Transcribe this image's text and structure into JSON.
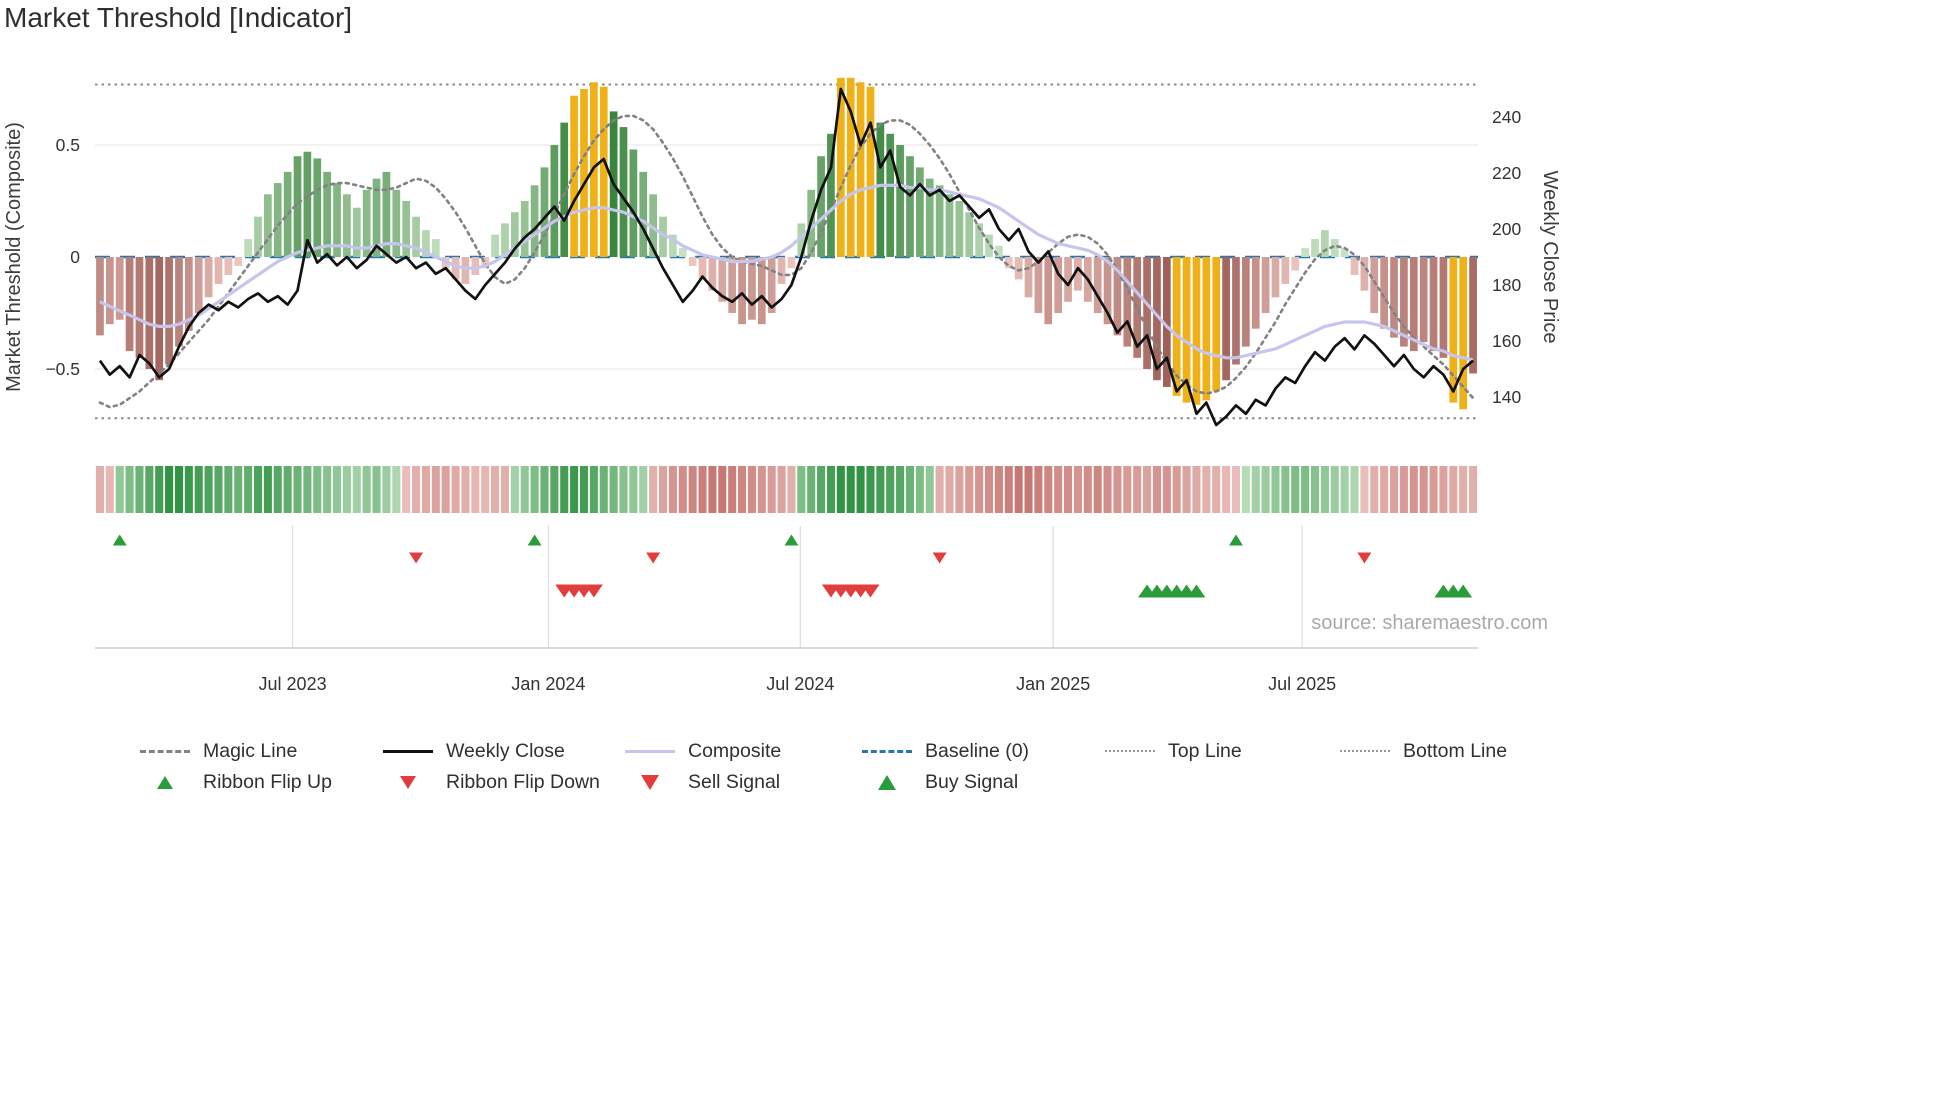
{
  "page": {
    "title": "Market Threshold [Indicator]",
    "source_credit": "source: sharemaestro.com"
  },
  "colors": {
    "bar_green_dark": "#2e7d32",
    "bar_green_light": "#cfe8cb",
    "bar_red_dark": "#8e4a42",
    "bar_red_light": "#f3ccc7",
    "bar_highlight": "#efb118",
    "weekly_close_line": "#111111",
    "composite_line": "#c6c6ec",
    "magic_line": "#828282",
    "baseline": "#2878b0",
    "guide_line": "#8a8a8a",
    "ribbon_green_dark": "#1d8a33",
    "ribbon_green_light": "#ddefd8",
    "ribbon_red_dark": "#b44e48",
    "ribbon_red_light": "#f6dad6",
    "signal_green": "#2a9d3a",
    "signal_red": "#e23c3c"
  },
  "legend": {
    "row1": [
      {
        "label": "Magic Line",
        "swatch": "dashed-gray"
      },
      {
        "label": "Weekly Close",
        "swatch": "solid-black"
      },
      {
        "label": "Composite",
        "swatch": "solid-purple"
      },
      {
        "label": "Baseline (0)",
        "swatch": "dashed-blue"
      },
      {
        "label": "Top Line",
        "swatch": "dotted-gray"
      },
      {
        "label": "Bottom Line",
        "swatch": "dotted-gray"
      }
    ],
    "row2": [
      {
        "label": "Ribbon Flip Up",
        "swatch": "tri-up-small"
      },
      {
        "label": "Ribbon Flip Down",
        "swatch": "tri-down-small"
      },
      {
        "label": "Sell Signal",
        "swatch": "tri-down"
      },
      {
        "label": "Buy Signal",
        "swatch": "tri-up"
      }
    ]
  },
  "chart_data": {
    "type": "bar",
    "combo": [
      "bar",
      "line",
      "heatmap-ribbon",
      "signal-markers"
    ],
    "title": "Market Threshold [Indicator]",
    "x_axis": {
      "unit": "weekly",
      "ticks": [
        {
          "pos": 20.0,
          "label": "Jul 2023"
        },
        {
          "pos": 45.9,
          "label": "Jan 2024"
        },
        {
          "pos": 71.4,
          "label": "Jul 2024"
        },
        {
          "pos": 97.0,
          "label": "Jan 2025"
        },
        {
          "pos": 122.2,
          "label": "Jul 2025"
        }
      ]
    },
    "y_left": {
      "label": "Market Threshold (Composite)",
      "ticks": [
        0.5,
        0,
        -0.5
      ],
      "tick_labels": [
        "0.5",
        "0",
        "−0.5"
      ],
      "range": [
        -0.85,
        0.85
      ]
    },
    "y_right": {
      "label": "Weekly Close Price",
      "ticks": [
        240,
        220,
        200,
        180,
        160,
        140
      ],
      "tick_labels": [
        "240",
        "220",
        "200",
        "180",
        "160",
        "140"
      ],
      "range": [
        128,
        255
      ]
    },
    "reference_lines": {
      "baseline": 0,
      "top_line": 0.77,
      "bottom_line": -0.72
    },
    "bars": {
      "name": "Market Threshold (Composite) histogram",
      "axis": "left",
      "values": [
        -0.35,
        -0.3,
        -0.28,
        -0.42,
        -0.45,
        -0.5,
        -0.55,
        -0.48,
        -0.4,
        -0.33,
        -0.25,
        -0.18,
        -0.12,
        -0.08,
        -0.04,
        0.08,
        0.18,
        0.28,
        0.33,
        0.38,
        0.45,
        0.47,
        0.44,
        0.38,
        0.33,
        0.28,
        0.22,
        0.3,
        0.35,
        0.38,
        0.3,
        0.25,
        0.18,
        0.12,
        0.08,
        -0.05,
        -0.1,
        -0.12,
        -0.08,
        -0.05,
        0.1,
        0.15,
        0.2,
        0.25,
        0.32,
        0.4,
        0.5,
        0.6,
        0.72,
        0.75,
        0.78,
        0.76,
        0.65,
        0.58,
        0.48,
        0.38,
        0.28,
        0.18,
        0.1,
        0.04,
        -0.04,
        -0.1,
        -0.15,
        -0.2,
        -0.25,
        -0.3,
        -0.28,
        -0.3,
        -0.25,
        -0.12,
        -0.05,
        0.15,
        0.3,
        0.45,
        0.55,
        0.8,
        0.8,
        0.78,
        0.76,
        0.6,
        0.55,
        0.5,
        0.45,
        0.4,
        0.35,
        0.32,
        0.28,
        0.25,
        0.2,
        0.15,
        0.1,
        0.05,
        -0.05,
        -0.1,
        -0.18,
        -0.25,
        -0.3,
        -0.25,
        -0.2,
        -0.15,
        -0.2,
        -0.25,
        -0.3,
        -0.35,
        -0.4,
        -0.45,
        -0.5,
        -0.55,
        -0.58,
        -0.62,
        -0.65,
        -0.66,
        -0.64,
        -0.6,
        -0.55,
        -0.48,
        -0.4,
        -0.32,
        -0.25,
        -0.18,
        -0.12,
        -0.06,
        0.04,
        0.08,
        0.12,
        0.08,
        0.04,
        -0.08,
        -0.15,
        -0.25,
        -0.32,
        -0.36,
        -0.4,
        -0.42,
        -0.38,
        -0.42,
        -0.45,
        -0.65,
        -0.68,
        -0.52
      ],
      "highlight_weeks": [
        48,
        49,
        50,
        51,
        75,
        76,
        77,
        78,
        109,
        110,
        111,
        112,
        113,
        137,
        138
      ]
    },
    "series": [
      {
        "name": "Magic Line",
        "axis": "left",
        "style": "dotted",
        "values": [
          -0.65,
          -0.67,
          -0.66,
          -0.63,
          -0.6,
          -0.56,
          -0.52,
          -0.48,
          -0.43,
          -0.38,
          -0.33,
          -0.28,
          -0.22,
          -0.16,
          -0.1,
          -0.04,
          0.02,
          0.08,
          0.14,
          0.19,
          0.24,
          0.27,
          0.3,
          0.32,
          0.33,
          0.33,
          0.32,
          0.31,
          0.3,
          0.3,
          0.31,
          0.33,
          0.35,
          0.34,
          0.31,
          0.26,
          0.2,
          0.13,
          0.05,
          -0.03,
          -0.09,
          -0.12,
          -0.1,
          -0.05,
          0.02,
          0.1,
          0.19,
          0.28,
          0.37,
          0.45,
          0.52,
          0.57,
          0.61,
          0.63,
          0.63,
          0.61,
          0.57,
          0.51,
          0.44,
          0.36,
          0.27,
          0.18,
          0.1,
          0.04,
          0.0,
          -0.02,
          -0.03,
          -0.04,
          -0.06,
          -0.08,
          -0.08,
          -0.05,
          0.02,
          0.11,
          0.21,
          0.31,
          0.41,
          0.49,
          0.55,
          0.59,
          0.61,
          0.61,
          0.59,
          0.55,
          0.5,
          0.44,
          0.37,
          0.29,
          0.21,
          0.13,
          0.06,
          0.0,
          -0.04,
          -0.06,
          -0.05,
          -0.02,
          0.02,
          0.06,
          0.09,
          0.1,
          0.09,
          0.06,
          0.01,
          -0.06,
          -0.14,
          -0.23,
          -0.32,
          -0.4,
          -0.47,
          -0.53,
          -0.57,
          -0.6,
          -0.61,
          -0.6,
          -0.58,
          -0.54,
          -0.49,
          -0.43,
          -0.36,
          -0.29,
          -0.21,
          -0.14,
          -0.07,
          -0.01,
          0.03,
          0.05,
          0.04,
          0.01,
          -0.04,
          -0.11,
          -0.18,
          -0.25,
          -0.31,
          -0.36,
          -0.4,
          -0.44,
          -0.48,
          -0.53,
          -0.58,
          -0.63
        ]
      },
      {
        "name": "Weekly Close",
        "axis": "right",
        "style": "solid",
        "values": [
          153,
          148,
          151,
          147,
          155,
          152,
          147,
          150,
          158,
          165,
          170,
          173,
          171,
          174,
          172,
          175,
          177,
          174,
          176,
          173,
          178,
          196,
          188,
          191,
          187,
          190,
          186,
          189,
          194,
          191,
          188,
          190,
          186,
          188,
          184,
          186,
          182,
          178,
          175,
          180,
          184,
          188,
          193,
          197,
          200,
          204,
          208,
          203,
          210,
          216,
          222,
          225,
          216,
          211,
          206,
          200,
          193,
          186,
          180,
          174,
          178,
          183,
          179,
          176,
          174,
          177,
          173,
          176,
          172,
          175,
          180,
          190,
          203,
          214,
          222,
          250,
          242,
          230,
          238,
          222,
          228,
          215,
          212,
          216,
          212,
          214,
          210,
          212,
          208,
          204,
          207,
          200,
          196,
          200,
          192,
          188,
          192,
          184,
          180,
          186,
          182,
          176,
          170,
          163,
          167,
          158,
          162,
          150,
          154,
          142,
          146,
          134,
          138,
          130,
          133,
          137,
          134,
          139,
          137,
          143,
          147,
          145,
          151,
          156,
          153,
          158,
          161,
          157,
          162,
          159,
          155,
          151,
          155,
          150,
          147,
          151,
          148,
          142,
          150,
          153
        ]
      },
      {
        "name": "Composite",
        "axis": "left",
        "style": "solid",
        "values": [
          -0.2,
          -0.22,
          -0.24,
          -0.26,
          -0.28,
          -0.3,
          -0.31,
          -0.31,
          -0.3,
          -0.28,
          -0.26,
          -0.23,
          -0.2,
          -0.17,
          -0.14,
          -0.11,
          -0.08,
          -0.05,
          -0.02,
          0.0,
          0.02,
          0.03,
          0.04,
          0.05,
          0.05,
          0.05,
          0.04,
          0.04,
          0.05,
          0.06,
          0.06,
          0.05,
          0.04,
          0.02,
          0.0,
          -0.02,
          -0.04,
          -0.05,
          -0.05,
          -0.04,
          -0.02,
          0.01,
          0.04,
          0.07,
          0.1,
          0.13,
          0.16,
          0.18,
          0.2,
          0.21,
          0.22,
          0.22,
          0.21,
          0.2,
          0.18,
          0.16,
          0.13,
          0.1,
          0.08,
          0.05,
          0.03,
          0.01,
          0.0,
          -0.01,
          -0.02,
          -0.02,
          -0.02,
          -0.01,
          0.0,
          0.02,
          0.05,
          0.09,
          0.13,
          0.17,
          0.21,
          0.25,
          0.28,
          0.3,
          0.31,
          0.32,
          0.32,
          0.32,
          0.31,
          0.31,
          0.3,
          0.3,
          0.29,
          0.28,
          0.27,
          0.26,
          0.24,
          0.22,
          0.19,
          0.16,
          0.13,
          0.1,
          0.08,
          0.06,
          0.05,
          0.04,
          0.03,
          0.01,
          -0.02,
          -0.06,
          -0.11,
          -0.16,
          -0.21,
          -0.26,
          -0.31,
          -0.35,
          -0.38,
          -0.41,
          -0.43,
          -0.44,
          -0.45,
          -0.45,
          -0.44,
          -0.43,
          -0.42,
          -0.41,
          -0.39,
          -0.37,
          -0.35,
          -0.33,
          -0.31,
          -0.3,
          -0.29,
          -0.29,
          -0.29,
          -0.3,
          -0.31,
          -0.33,
          -0.35,
          -0.37,
          -0.39,
          -0.41,
          -0.42,
          -0.44,
          -0.45,
          -0.46
        ]
      }
    ],
    "ribbon": {
      "name": "Trend Ribbon",
      "values": [
        -0.3,
        -0.25,
        0.4,
        0.5,
        0.6,
        0.7,
        0.8,
        0.9,
        0.9,
        0.85,
        0.8,
        0.75,
        0.7,
        0.65,
        0.6,
        0.65,
        0.75,
        0.8,
        0.7,
        0.65,
        0.6,
        0.55,
        0.5,
        0.45,
        0.4,
        0.35,
        0.3,
        0.4,
        0.45,
        0.35,
        0.25,
        -0.2,
        -0.3,
        -0.35,
        -0.4,
        -0.4,
        -0.35,
        -0.3,
        -0.25,
        -0.25,
        -0.3,
        -0.3,
        0.3,
        0.4,
        0.5,
        0.6,
        0.7,
        0.8,
        0.85,
        0.8,
        0.7,
        0.6,
        0.55,
        0.45,
        0.4,
        0.3,
        -0.3,
        -0.4,
        -0.5,
        -0.55,
        -0.6,
        -0.65,
        -0.7,
        -0.7,
        -0.65,
        -0.6,
        -0.55,
        -0.5,
        -0.45,
        -0.4,
        -0.3,
        0.5,
        0.6,
        0.7,
        0.8,
        0.9,
        0.9,
        0.9,
        0.85,
        0.8,
        0.75,
        0.7,
        0.6,
        0.5,
        0.4,
        -0.3,
        -0.35,
        -0.4,
        -0.45,
        -0.5,
        -0.55,
        -0.6,
        -0.65,
        -0.7,
        -0.7,
        -0.65,
        -0.6,
        -0.55,
        -0.55,
        -0.5,
        -0.55,
        -0.6,
        -0.55,
        -0.5,
        -0.45,
        -0.45,
        -0.4,
        -0.5,
        -0.5,
        -0.45,
        -0.4,
        -0.35,
        -0.3,
        -0.3,
        -0.25,
        -0.2,
        0.2,
        0.3,
        0.35,
        0.4,
        0.45,
        0.5,
        0.5,
        0.45,
        0.4,
        0.35,
        0.3,
        0.25,
        -0.2,
        -0.3,
        -0.35,
        -0.4,
        -0.45,
        -0.5,
        -0.5,
        -0.45,
        -0.4,
        -0.35,
        -0.3,
        -0.3
      ]
    },
    "signals": {
      "ribbon_flip_up_weeks": [
        2,
        44,
        70,
        115
      ],
      "ribbon_flip_down_weeks": [
        32,
        56,
        85,
        128
      ],
      "sell_weeks": [
        47,
        48,
        49,
        50,
        74,
        75,
        76,
        77,
        78
      ],
      "buy_weeks": [
        106,
        107,
        108,
        109,
        110,
        111,
        136,
        137,
        138
      ]
    }
  }
}
